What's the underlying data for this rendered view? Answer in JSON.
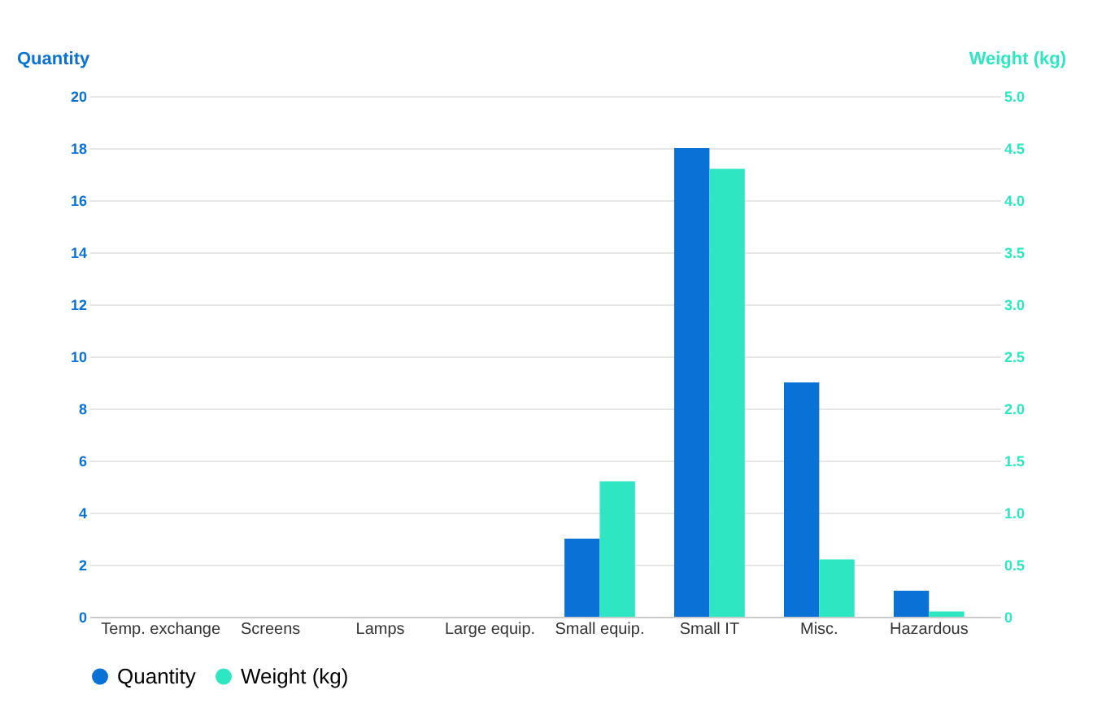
{
  "chart_data": {
    "type": "bar",
    "categories": [
      "Temp. exchange",
      "Screens",
      "Lamps",
      "Large equip.",
      "Small equip.",
      "Small IT",
      "Misc.",
      "Hazardous"
    ],
    "series": [
      {
        "name": "Quantity",
        "color": "#0a72d6",
        "values": [
          0,
          0,
          0,
          0,
          3,
          18,
          9,
          1
        ]
      },
      {
        "name": "Weight (kg)",
        "color": "#2ee6c2",
        "axis": "y2",
        "values": [
          0,
          0,
          0,
          0,
          1.3,
          4.3,
          0.55,
          0.05
        ]
      }
    ],
    "ylabel": "Quantity",
    "y2label": "Weight (kg)",
    "ylim": [
      0,
      20
    ],
    "yticks": [
      0,
      2,
      4,
      6,
      8,
      10,
      12,
      14,
      16,
      18,
      20
    ],
    "y2lim": [
      0,
      5
    ],
    "y2ticks": [
      0,
      {
        "value": 0.5,
        "label": "0.5"
      },
      {
        "value": 1,
        "label": "1.0"
      },
      {
        "value": 1.5,
        "label": "1.5"
      },
      {
        "value": 2,
        "label": "2.0"
      },
      {
        "value": 2.5,
        "label": "2.5"
      },
      {
        "value": 3,
        "label": "3.0"
      },
      {
        "value": 3.5,
        "label": "3.5"
      },
      {
        "value": 4,
        "label": "4.0"
      },
      {
        "value": 4.5,
        "label": "4.5"
      },
      {
        "value": 5,
        "label": "5.0"
      }
    ],
    "grid": "y",
    "legend": "bottom"
  }
}
